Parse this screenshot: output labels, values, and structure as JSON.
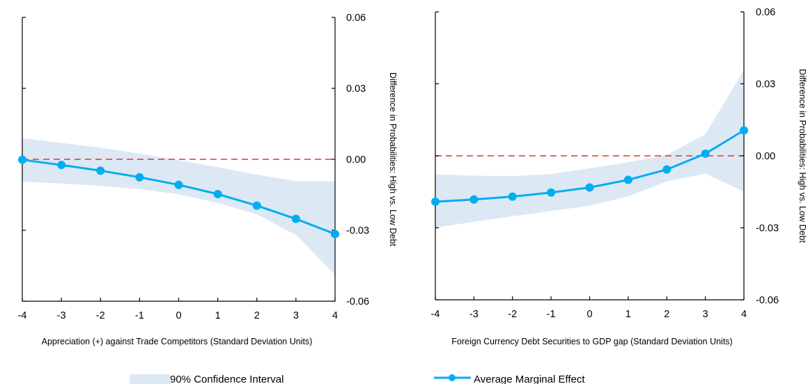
{
  "colors": {
    "line": "#00aeef",
    "band": "#dde8f5",
    "zero_line": "#e8302a",
    "axis": "#000000"
  },
  "chart_data": [
    {
      "type": "line",
      "x": [
        -4,
        -3,
        -2,
        -1,
        0,
        1,
        2,
        3,
        4
      ],
      "series": [
        {
          "name": "Average Marginal Effect",
          "values": [
            -0.0002,
            -0.0024,
            -0.0048,
            -0.0076,
            -0.0108,
            -0.0147,
            -0.0196,
            -0.0252,
            -0.0316
          ]
        },
        {
          "name": "90% Confidence Interval",
          "type": "band",
          "lower": [
            -0.0094,
            -0.0102,
            -0.0112,
            -0.0126,
            -0.0148,
            -0.0184,
            -0.0233,
            -0.032,
            -0.0488
          ],
          "upper": [
            0.0089,
            0.007,
            0.0049,
            0.0024,
            -0.0004,
            -0.0033,
            -0.0065,
            -0.0092,
            -0.0093
          ]
        }
      ],
      "xlabel": "Appreciation (+) against Trade Competitors (Standard Deviation Units)",
      "ylabel": "Difference in Probabilities: High vs. Low Debt",
      "xticks": [
        "-4",
        "-3",
        "-2",
        "-1",
        "0",
        "1",
        "2",
        "3",
        "4"
      ],
      "yticks": [
        "0.06",
        "0.03",
        "0.00",
        "-0.03",
        "-0.06"
      ],
      "ylim": [
        -0.06,
        0.06
      ],
      "xlim": [
        -4,
        4
      ],
      "reference_line": 0,
      "y_axis_side": "right",
      "grid": false
    },
    {
      "type": "line",
      "x": [
        -4,
        -3,
        -2,
        -1,
        0,
        1,
        2,
        3,
        4
      ],
      "series": [
        {
          "name": "Average Marginal Effect",
          "values": [
            -0.0191,
            -0.0182,
            -0.017,
            -0.0153,
            -0.0132,
            -0.01,
            -0.0057,
            0.0009,
            0.0106
          ]
        },
        {
          "name": "90% Confidence Interval",
          "type": "band",
          "lower": [
            -0.0299,
            -0.0275,
            -0.0252,
            -0.023,
            -0.0208,
            -0.0169,
            -0.0107,
            -0.0074,
            -0.0149
          ],
          "upper": [
            -0.0077,
            -0.0083,
            -0.0084,
            -0.0076,
            -0.0052,
            -0.0027,
            0.0004,
            0.009,
            0.0358
          ]
        }
      ],
      "xlabel": "Foreign Currency Debt Securities to GDP gap (Standard Deviation Units)",
      "ylabel": "Difference in Probabilities: High vs. Low Debt",
      "xticks": [
        "-4",
        "-3",
        "-2",
        "-1",
        "0",
        "1",
        "2",
        "3",
        "4"
      ],
      "yticks": [
        "0.06",
        "0.03",
        "0.00",
        "-0.03",
        "-0.06"
      ],
      "ylim": [
        -0.06,
        0.06
      ],
      "xlim": [
        -4,
        4
      ],
      "reference_line": 0,
      "y_axis_side": "right",
      "grid": false
    }
  ],
  "legend": {
    "band_label": "90% Confidence Interval",
    "line_label": "Average Marginal Effect"
  }
}
